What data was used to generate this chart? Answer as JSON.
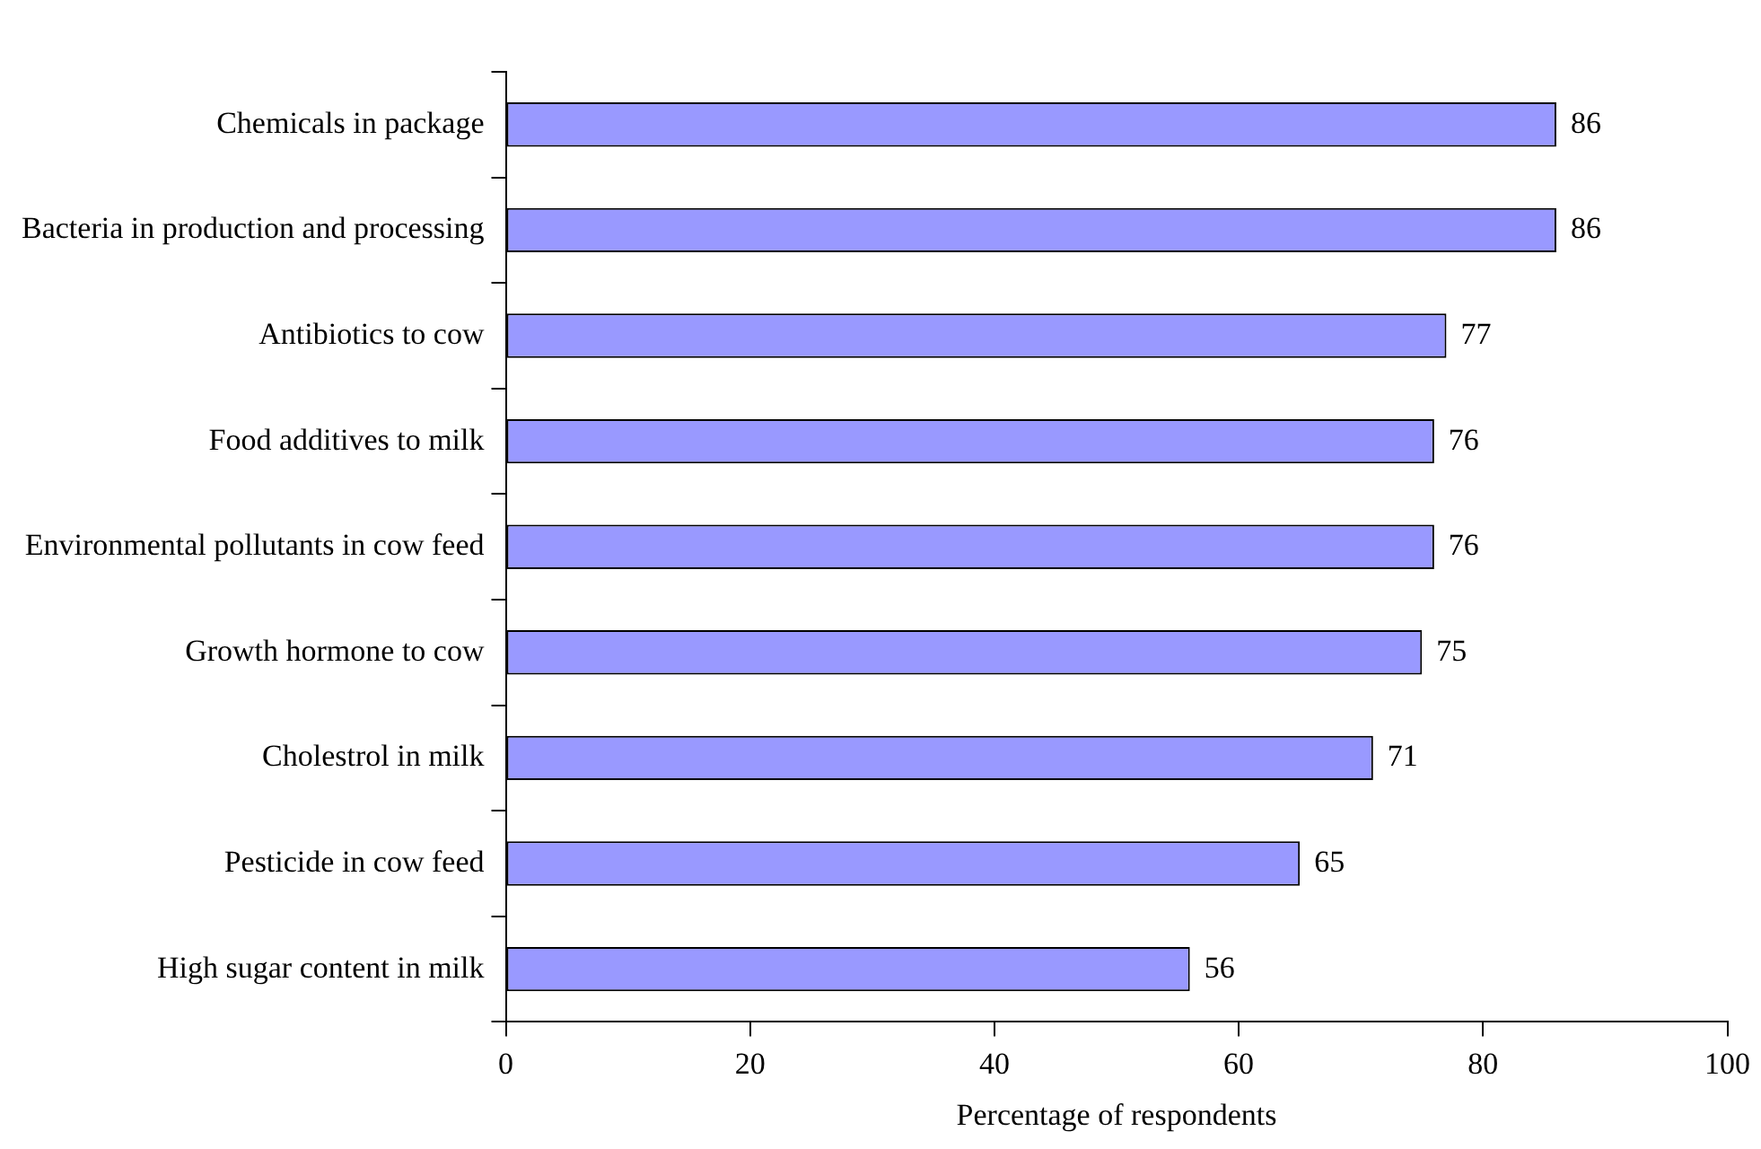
{
  "chart_data": {
    "type": "bar",
    "orientation": "horizontal",
    "xlabel": "Percentage of respondents",
    "categories": [
      "Chemicals in package",
      "Bacteria in production and processing",
      "Antibiotics to cow",
      "Food additives to milk",
      "Environmental pollutants in cow feed",
      "Growth hormone to cow",
      "Cholestrol in milk",
      "Pesticide in cow feed",
      "High sugar content in milk"
    ],
    "values": [
      86,
      86,
      77,
      76,
      76,
      75,
      71,
      65,
      56
    ],
    "color": "#9999ff",
    "xlim": [
      0,
      100
    ],
    "xticks": [
      0,
      20,
      40,
      60,
      80,
      100
    ],
    "grid": false,
    "legend": false,
    "data_labels": true
  }
}
